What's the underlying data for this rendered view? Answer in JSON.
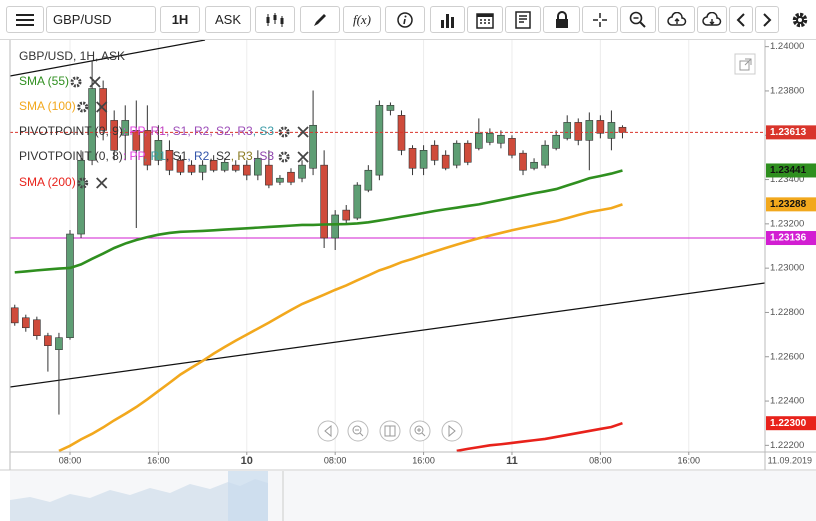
{
  "toolbar": {
    "symbol": "GBP/USD",
    "interval": "1H",
    "price_type": "ASK",
    "function": "f(x)"
  },
  "chart_data": {
    "type": "candlestick",
    "title": "GBP/USD, 1H, ASK",
    "up_color": "#5e9e74",
    "down_color": "#cf4b3b",
    "ohlc": [
      [
        1.22821,
        1.22835,
        1.2274,
        1.22753
      ],
      [
        1.22776,
        1.2279,
        1.22713,
        1.22731
      ],
      [
        1.22767,
        1.22781,
        1.22677,
        1.22695
      ],
      [
        1.22695,
        1.22708,
        1.22533,
        1.2265
      ],
      [
        1.22632,
        1.22708,
        1.22339,
        1.22686
      ],
      [
        1.22686,
        1.23172,
        1.22677,
        1.23154
      ],
      [
        1.23154,
        1.23532,
        1.23136,
        1.23487
      ],
      [
        1.23487,
        1.23937,
        1.23465,
        1.23811
      ],
      [
        1.23811,
        1.23847,
        1.23577,
        1.23622
      ],
      [
        1.23667,
        1.23712,
        1.23487,
        1.23532
      ],
      [
        1.236,
        1.23735,
        1.23487,
        1.23667
      ],
      [
        1.23622,
        1.23757,
        1.23181,
        1.23532
      ],
      [
        1.23622,
        1.23735,
        1.23442,
        1.23465
      ],
      [
        1.23487,
        1.23645,
        1.23465,
        1.23577
      ],
      [
        1.23532,
        1.23577,
        1.2342,
        1.23442
      ],
      [
        1.23487,
        1.2351,
        1.2342,
        1.23433
      ],
      [
        1.23465,
        1.23487,
        1.2342,
        1.23433
      ],
      [
        1.23433,
        1.23487,
        1.23397,
        1.23465
      ],
      [
        1.23487,
        1.2351,
        1.23433,
        1.23442
      ],
      [
        1.23442,
        1.23496,
        1.23433,
        1.23478
      ],
      [
        1.23465,
        1.23487,
        1.23433,
        1.23442
      ],
      [
        1.23465,
        1.23487,
        1.23397,
        1.2342
      ],
      [
        1.2342,
        1.23532,
        1.23397,
        1.23496
      ],
      [
        1.23465,
        1.23532,
        1.23361,
        1.23375
      ],
      [
        1.23388,
        1.2342,
        1.23375,
        1.23406
      ],
      [
        1.23433,
        1.23451,
        1.23375,
        1.23388
      ],
      [
        1.23406,
        1.23487,
        1.23388,
        1.23465
      ],
      [
        1.23451,
        1.23802,
        1.2342,
        1.23645
      ],
      [
        1.23465,
        1.23532,
        1.23091,
        1.23136
      ],
      [
        1.23136,
        1.23262,
        1.23082,
        1.2324
      ],
      [
        1.23262,
        1.23285,
        1.23195,
        1.23217
      ],
      [
        1.23226,
        1.23388,
        1.23217,
        1.23375
      ],
      [
        1.23352,
        1.23465,
        1.23343,
        1.23442
      ],
      [
        1.2342,
        1.23757,
        1.23397,
        1.23735
      ],
      [
        1.23712,
        1.23748,
        1.2369,
        1.23735
      ],
      [
        1.2369,
        1.23712,
        1.2351,
        1.23532
      ],
      [
        1.23541,
        1.23555,
        1.2342,
        1.23451
      ],
      [
        1.23451,
        1.23555,
        1.2342,
        1.23532
      ],
      [
        1.23555,
        1.23577,
        1.23465,
        1.23487
      ],
      [
        1.2351,
        1.23532,
        1.23442,
        1.23451
      ],
      [
        1.23465,
        1.23577,
        1.23451,
        1.23564
      ],
      [
        1.23564,
        1.23577,
        1.23465,
        1.23478
      ],
      [
        1.23541,
        1.23676,
        1.23532,
        1.23609
      ],
      [
        1.23568,
        1.23631,
        1.23555,
        1.23609
      ],
      [
        1.23564,
        1.23622,
        1.23541,
        1.236
      ],
      [
        1.23586,
        1.236,
        1.23496,
        1.2351
      ],
      [
        1.23519,
        1.23532,
        1.2342,
        1.23442
      ],
      [
        1.23451,
        1.23496,
        1.23442,
        1.23478
      ],
      [
        1.23465,
        1.23577,
        1.23451,
        1.23555
      ],
      [
        1.23541,
        1.23622,
        1.23532,
        1.236
      ],
      [
        1.23586,
        1.2369,
        1.23577,
        1.23658
      ],
      [
        1.23658,
        1.23676,
        1.23555,
        1.23577
      ],
      [
        1.23577,
        1.23703,
        1.23442,
        1.23667
      ],
      [
        1.23667,
        1.2369,
        1.23586,
        1.23609
      ],
      [
        1.23586,
        1.23712,
        1.23532,
        1.23658
      ],
      [
        1.23636,
        1.23645,
        1.23586,
        1.23613
      ]
    ],
    "series": [
      {
        "name": "SMA (55)",
        "color": "#2f8f1f",
        "tag_label": "1.23441",
        "tag_text_color": "#111",
        "values": [
          1.22981,
          1.22985,
          1.2299,
          1.22994,
          1.22998,
          1.23001,
          1.23017,
          1.23042,
          1.23066,
          1.23091,
          1.23111,
          1.23127,
          1.2314,
          1.23151,
          1.23159,
          1.23164,
          1.23166,
          1.23168,
          1.23171,
          1.23174,
          1.23177,
          1.2318,
          1.23183,
          1.23186,
          1.23189,
          1.23192,
          1.23195,
          1.23195,
          1.23197,
          1.23198,
          1.23199,
          1.23202,
          1.23207,
          1.23215,
          1.23223,
          1.23232,
          1.2324,
          1.23249,
          1.23258,
          1.23266,
          1.23273,
          1.23281,
          1.23288,
          1.23298,
          1.23308,
          1.23318,
          1.23328,
          1.23338,
          1.23347,
          1.23357,
          1.23373,
          1.23389,
          1.23406,
          1.23416,
          1.23427,
          1.23441
        ]
      },
      {
        "name": "SMA (100)",
        "color": "#f2a81d",
        "tag_label": "1.23288",
        "tag_text_color": "#111",
        "values": [
          null,
          null,
          null,
          null,
          1.22175,
          1.22198,
          1.22227,
          1.22252,
          1.22281,
          1.22313,
          1.22342,
          1.22373,
          1.22408,
          1.22445,
          1.22482,
          1.2252,
          1.22551,
          1.22581,
          1.22614,
          1.22644,
          1.22673,
          1.227,
          1.22727,
          1.22754,
          1.22783,
          1.22811,
          1.22838,
          1.22859,
          1.2288,
          1.22902,
          1.22922,
          1.22945,
          1.22967,
          1.2299,
          1.23007,
          1.23027,
          1.23042,
          1.23059,
          1.23075,
          1.23091,
          1.23106,
          1.23121,
          1.23135,
          1.23147,
          1.23159,
          1.23171,
          1.23182,
          1.23192,
          1.23203,
          1.23213,
          1.23226,
          1.2324,
          1.23253,
          1.23262,
          1.23271,
          1.23288
        ]
      },
      {
        "name": "SMA (200)",
        "color": "#e8221b",
        "tag_label": "1.22300",
        "tag_text_color": "#fff",
        "values": [
          null,
          null,
          null,
          null,
          null,
          null,
          null,
          null,
          null,
          null,
          null,
          null,
          null,
          null,
          null,
          null,
          null,
          null,
          null,
          null,
          null,
          null,
          null,
          null,
          null,
          null,
          null,
          null,
          null,
          null,
          null,
          null,
          null,
          null,
          null,
          null,
          null,
          null,
          null,
          null,
          1.22175,
          1.22184,
          1.22192,
          1.222,
          1.22205,
          1.22211,
          1.22217,
          1.22223,
          1.22229,
          1.22238,
          1.22247,
          1.22256,
          1.22265,
          1.22274,
          1.22283,
          1.223
        ]
      }
    ],
    "pivot_legends": [
      {
        "name": "PIVOTPOINT (0, 9)",
        "items": [
          {
            "text": ": PP",
            "color": "#e040e0"
          },
          {
            "text": ", R1",
            "color": "#c03cc0"
          },
          {
            "text": ", S1",
            "color": "#9c4cb8"
          },
          {
            "text": ", R2",
            "color": "#9c4cb8"
          },
          {
            "text": ", S2",
            "color": "#9c4cb8"
          },
          {
            "text": ", R3",
            "color": "#9c4cb8"
          },
          {
            "text": ", S3",
            "color": "#3a9aa6"
          }
        ]
      },
      {
        "name": "PIVOTPOINT (0, 8)",
        "items": [
          {
            "text": ": PP",
            "color": "#e040e0"
          },
          {
            "text": ", R1",
            "color": "#3aa0a0"
          },
          {
            "text": ", S1",
            "color": "#333333"
          },
          {
            "text": ", R2",
            "color": "#3355aa"
          },
          {
            "text": ", S2",
            "color": "#333333"
          },
          {
            "text": ", R3",
            "color": "#8a7a20"
          },
          {
            "text": ", S3",
            "color": "#8e44ad"
          }
        ]
      }
    ],
    "current_price": {
      "value": 1.23613,
      "label": "1.23613",
      "color": "#d9342b"
    },
    "pp_level": {
      "value": 1.23136,
      "label": "1.23136",
      "color": "#d21ed2"
    },
    "ylim": [
      1.2217,
      1.2403
    ],
    "yticks": [
      {
        "value": 1.222,
        "label": "1.22200"
      },
      {
        "value": 1.224,
        "label": "1.22400"
      },
      {
        "value": 1.226,
        "label": "1.22600"
      },
      {
        "value": 1.228,
        "label": "1.22800"
      },
      {
        "value": 1.23,
        "label": "1.23000"
      },
      {
        "value": 1.232,
        "label": "1.23200"
      },
      {
        "value": 1.234,
        "label": "1.23400"
      },
      {
        "value": 1.236,
        "label": "1.23600"
      },
      {
        "value": 1.238,
        "label": "1.23800"
      },
      {
        "value": 1.24,
        "label": "1.24000"
      }
    ],
    "xlim": [
      -0.43,
      67.9
    ],
    "xticks": [
      {
        "value": 5,
        "label": "08:00"
      },
      {
        "value": 13,
        "label": "16:00"
      },
      {
        "value": 21,
        "label": "10"
      },
      {
        "value": 29,
        "label": "08:00"
      },
      {
        "value": 37,
        "label": "16:00"
      },
      {
        "value": 45,
        "label": "11"
      },
      {
        "value": 53,
        "label": "08:00"
      },
      {
        "value": 61,
        "label": "16:00"
      }
    ],
    "xgrid": true,
    "date_label": "11.09.2019"
  }
}
